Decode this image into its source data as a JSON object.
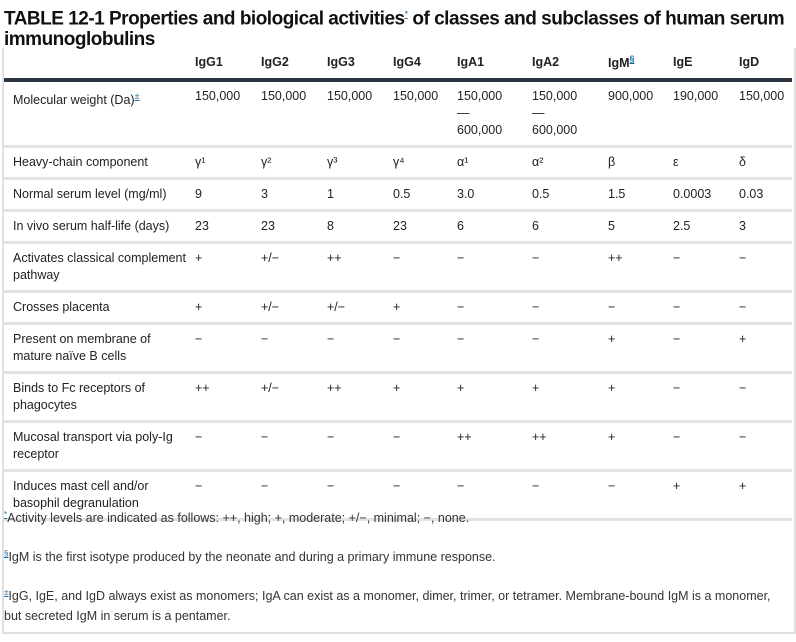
{
  "title": {
    "text": "TABLE 12-1 Properties and biological activities",
    "marker": "*",
    "text_after": " of classes and subclasses of human serum immunoglobulins"
  },
  "columns": [
    "IgG1",
    "IgG2",
    "IgG3",
    "IgG4",
    "IgA1",
    "IgA2",
    "IgM",
    "IgE",
    "IgD"
  ],
  "igm_marker": "§",
  "rows": [
    {
      "label": "Molecular weight (Da)",
      "marker": "±",
      "values": [
        "150,000",
        "150,000",
        "150,000",
        "150,000",
        "150,000\n—\n600,000",
        "150,000\n—\n600,000",
        "900,000",
        "190,000",
        "150,000"
      ]
    },
    {
      "label": "Heavy-chain component",
      "values": [
        "γ¹",
        "γ²",
        "γ³",
        "γ⁴",
        "α¹",
        "α²",
        "β",
        "ε",
        "δ"
      ]
    },
    {
      "label": "Normal serum level (mg/ml)",
      "values": [
        "9",
        "3",
        "1",
        "0.5",
        "3.0",
        "0.5",
        "1.5",
        "0.0003",
        "0.03"
      ]
    },
    {
      "label": "In vivo serum half-life (days)",
      "values": [
        "23",
        "23",
        "8",
        "23",
        "6",
        "6",
        "5",
        "2.5",
        "3"
      ]
    },
    {
      "label": "Activates classical complement pathway",
      "values": [
        "+",
        "+/−",
        "++",
        "−",
        "−",
        "−",
        "++",
        "−",
        "−"
      ]
    },
    {
      "label": "Crosses placenta",
      "values": [
        "+",
        "+/−",
        "+/−",
        "+",
        "−",
        "−",
        "−",
        "−",
        "−"
      ]
    },
    {
      "label": "Present on membrane of mature naïve B cells",
      "values": [
        "−",
        "−",
        "−",
        "−",
        "−",
        "−",
        "+",
        "−",
        "+"
      ]
    },
    {
      "label": "Binds to Fc receptors of phagocytes",
      "values": [
        "++",
        "+/−",
        "++",
        "+",
        "+",
        "+",
        "+",
        "−",
        "−"
      ]
    },
    {
      "label": "Mucosal transport via poly-Ig receptor",
      "values": [
        "−",
        "−",
        "−",
        "−",
        "++",
        "++",
        "+",
        "−",
        "−"
      ]
    },
    {
      "label": "Induces mast cell and/or basophil degranulation",
      "values": [
        "−",
        "−",
        "−",
        "−",
        "−",
        "−",
        "−",
        "+",
        "+"
      ]
    }
  ],
  "footnotes": [
    {
      "marker": "*",
      "text": "Activity levels are indicated as follows: ++, high; +, moderate; +/−, minimal; −, none."
    },
    {
      "marker": "§",
      "text": "IgM is the first isotype produced by the neonate and during a primary immune response."
    },
    {
      "marker": "±",
      "text": "IgG, IgE, and IgD always exist as monomers; IgA can exist as a monomer, dimer, trimer, or tetramer. Membrane-bound IgM is a monomer, but secreted IgM in serum is a pentamer."
    }
  ]
}
